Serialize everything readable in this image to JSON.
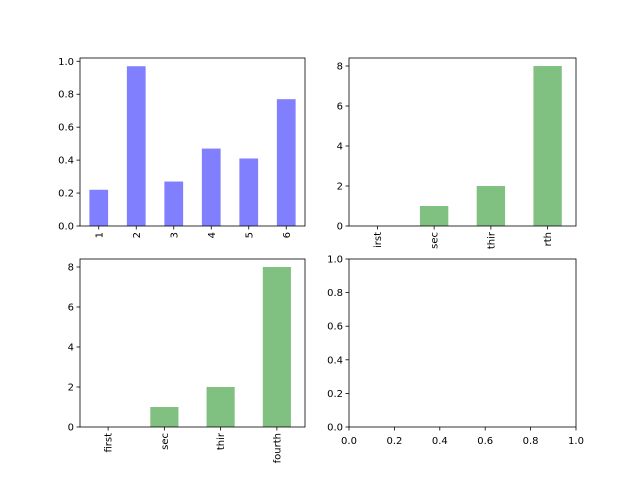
{
  "chart_data": [
    {
      "type": "bar",
      "categories": [
        "1",
        "2",
        "3",
        "4",
        "5",
        "6"
      ],
      "values": [
        0.22,
        0.97,
        0.27,
        0.47,
        0.41,
        0.77
      ],
      "ylim": [
        0,
        1.02
      ],
      "yticks": [
        "0.0",
        "0.2",
        "0.4",
        "0.6",
        "0.8",
        "1.0"
      ],
      "color": "#8080ff",
      "xtick_rotation": "vertical"
    },
    {
      "type": "bar",
      "categories": [
        "first",
        "sec",
        "thir",
        "fourth"
      ],
      "tick_labels_shown": [
        "irst",
        "sec",
        "thir",
        "rth"
      ],
      "values": [
        0,
        1,
        2,
        8
      ],
      "ylim": [
        0,
        8.4
      ],
      "yticks": [
        "0",
        "2",
        "4",
        "6",
        "8"
      ],
      "color": "#80c080",
      "xtick_rotation": "vertical"
    },
    {
      "type": "bar",
      "categories": [
        "first",
        "sec",
        "thir",
        "fourth"
      ],
      "tick_labels_shown": [
        "first",
        "sec",
        "thir",
        "fourth"
      ],
      "values": [
        0,
        1,
        2,
        8
      ],
      "ylim": [
        0,
        8.4
      ],
      "yticks": [
        "0",
        "2",
        "4",
        "6",
        "8"
      ],
      "color": "#80c080",
      "xtick_rotation": "vertical"
    },
    {
      "type": "empty",
      "xlim": [
        0,
        1
      ],
      "ylim": [
        0,
        1
      ],
      "xticks": [
        "0.0",
        "0.2",
        "0.4",
        "0.6",
        "0.8",
        "1.0"
      ],
      "yticks": [
        "0.0",
        "0.2",
        "0.4",
        "0.6",
        "0.8",
        "1.0"
      ]
    }
  ]
}
